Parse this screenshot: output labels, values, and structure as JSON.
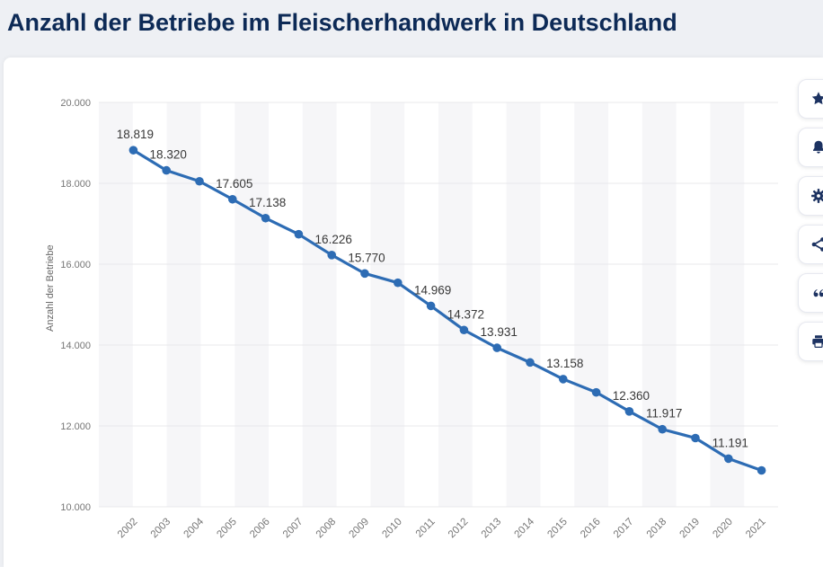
{
  "page": {
    "title": "Anzahl der Betriebe im Fleischerhandwerk in Deutschland"
  },
  "toolbar": {
    "buttons": [
      {
        "id": "favorite",
        "icon": "star-icon"
      },
      {
        "id": "alert",
        "icon": "bell-icon"
      },
      {
        "id": "settings",
        "icon": "gear-icon"
      },
      {
        "id": "share",
        "icon": "share-icon"
      },
      {
        "id": "cite",
        "icon": "quote-icon"
      },
      {
        "id": "print",
        "icon": "printer-icon"
      }
    ]
  },
  "chart_data": {
    "type": "line",
    "title": "Anzahl der Betriebe im Fleischerhandwerk in Deutschland",
    "ylabel": "Anzahl der Betriebe",
    "x": [
      "2002",
      "2003",
      "2004",
      "2005",
      "2006",
      "2007",
      "2008",
      "2009",
      "2010",
      "2011",
      "2012",
      "2013",
      "2014",
      "2015",
      "2016",
      "2017",
      "2018",
      "2019",
      "2020",
      "2021"
    ],
    "values": [
      18819,
      18320,
      18050,
      17605,
      17138,
      16740,
      16226,
      15770,
      15540,
      14969,
      14372,
      13931,
      13570,
      13158,
      12830,
      12360,
      11917,
      11700,
      11191,
      10900
    ],
    "point_labels": [
      "18.819",
      "18.320",
      null,
      "17.605",
      "17.138",
      null,
      "16.226",
      "15.770",
      null,
      "14.969",
      "14.372",
      "13.931",
      null,
      "13.158",
      null,
      "12.360",
      "11.917",
      null,
      "11.191",
      null
    ],
    "ylim": [
      10000,
      20000
    ],
    "yticks": [
      {
        "value": 20000,
        "label": "20.000"
      },
      {
        "value": 18000,
        "label": "18.000"
      },
      {
        "value": 16000,
        "label": "16.000"
      },
      {
        "value": 14000,
        "label": "14.000"
      },
      {
        "value": 12000,
        "label": "12.000"
      },
      {
        "value": 10000,
        "label": "10.000"
      }
    ],
    "grid": true,
    "legend": "none",
    "line_color": "#2d6cb4",
    "stripe_color": "#f6f6f8",
    "grid_color": "#e8e8eb",
    "tick_color": "#767676",
    "label_color": "#383838"
  }
}
